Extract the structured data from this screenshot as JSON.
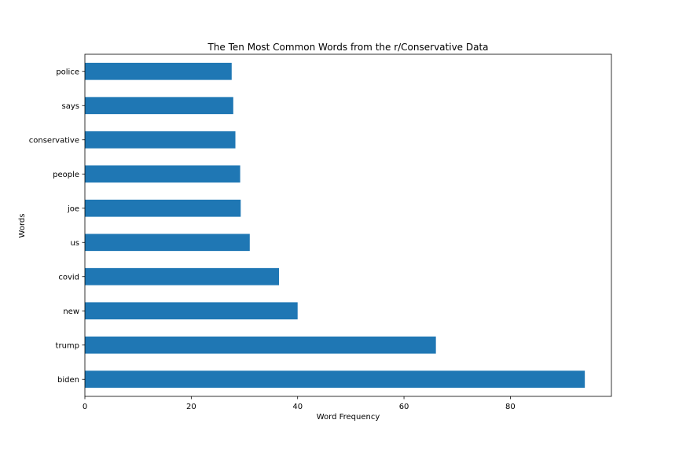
{
  "chart_data": {
    "type": "bar",
    "orientation": "horizontal",
    "title": "The Ten Most Common Words from the r/Conservative Data",
    "xlabel": "Word Frequency",
    "ylabel": "Words",
    "categories": [
      "biden",
      "trump",
      "new",
      "covid",
      "us",
      "joe",
      "people",
      "conservative",
      "says",
      "police"
    ],
    "values": [
      94,
      66,
      40,
      36.5,
      31,
      29.3,
      29.2,
      28.3,
      27.9,
      27.6
    ],
    "xlim": [
      0,
      99
    ],
    "xticks": [
      0,
      20,
      40,
      60,
      80
    ],
    "grid": false,
    "bar_color": "#1f77b4"
  }
}
